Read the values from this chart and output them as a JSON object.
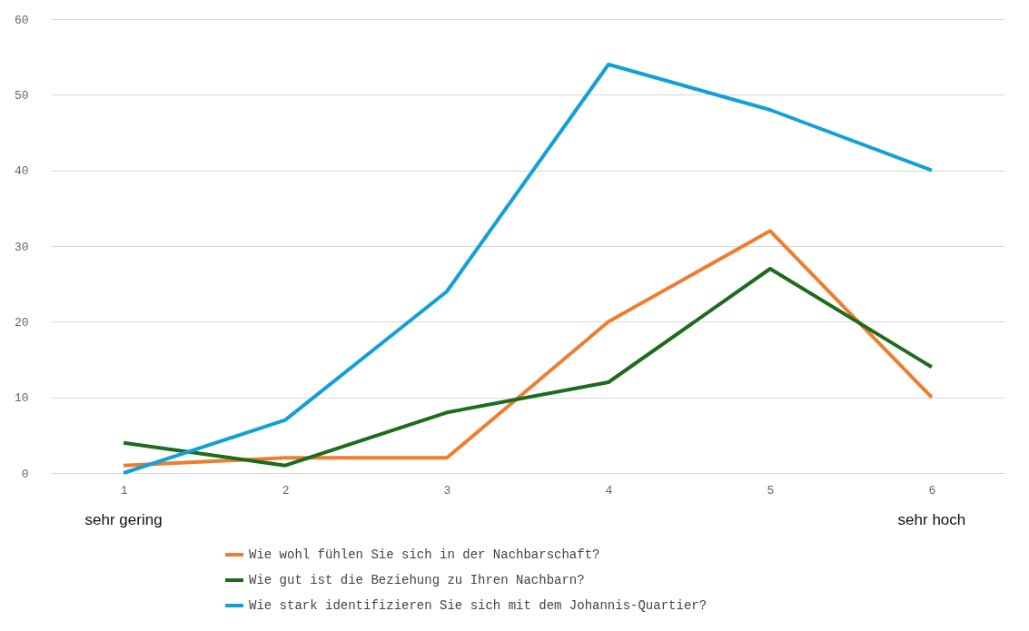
{
  "chart_data": {
    "type": "line",
    "categories": [
      "1",
      "2",
      "3",
      "4",
      "5",
      "6"
    ],
    "series": [
      {
        "name": "Wie wohl fühlen Sie sich in der Nachbarschaft?",
        "color": "#ed7d31",
        "values": [
          1,
          2,
          2,
          20,
          32,
          10
        ]
      },
      {
        "name": "Wie gut ist die Beziehung zu Ihren Nachbarn?",
        "color": "#1e6b1e",
        "values": [
          4,
          1,
          8,
          12,
          27,
          14
        ]
      },
      {
        "name": "Wie stark identifizieren Sie sich mit dem Johannis-Quartier?",
        "color": "#12a0d7",
        "values": [
          0,
          7,
          24,
          54,
          48,
          40
        ]
      }
    ],
    "ylim": [
      0,
      60
    ],
    "yticks": [
      0,
      10,
      20,
      30,
      40,
      50,
      60
    ],
    "grid": "y",
    "legend": "bottom",
    "marker": "none",
    "line_style": "solid",
    "annotations": [
      "sehr gering",
      "sehr hoch"
    ]
  }
}
